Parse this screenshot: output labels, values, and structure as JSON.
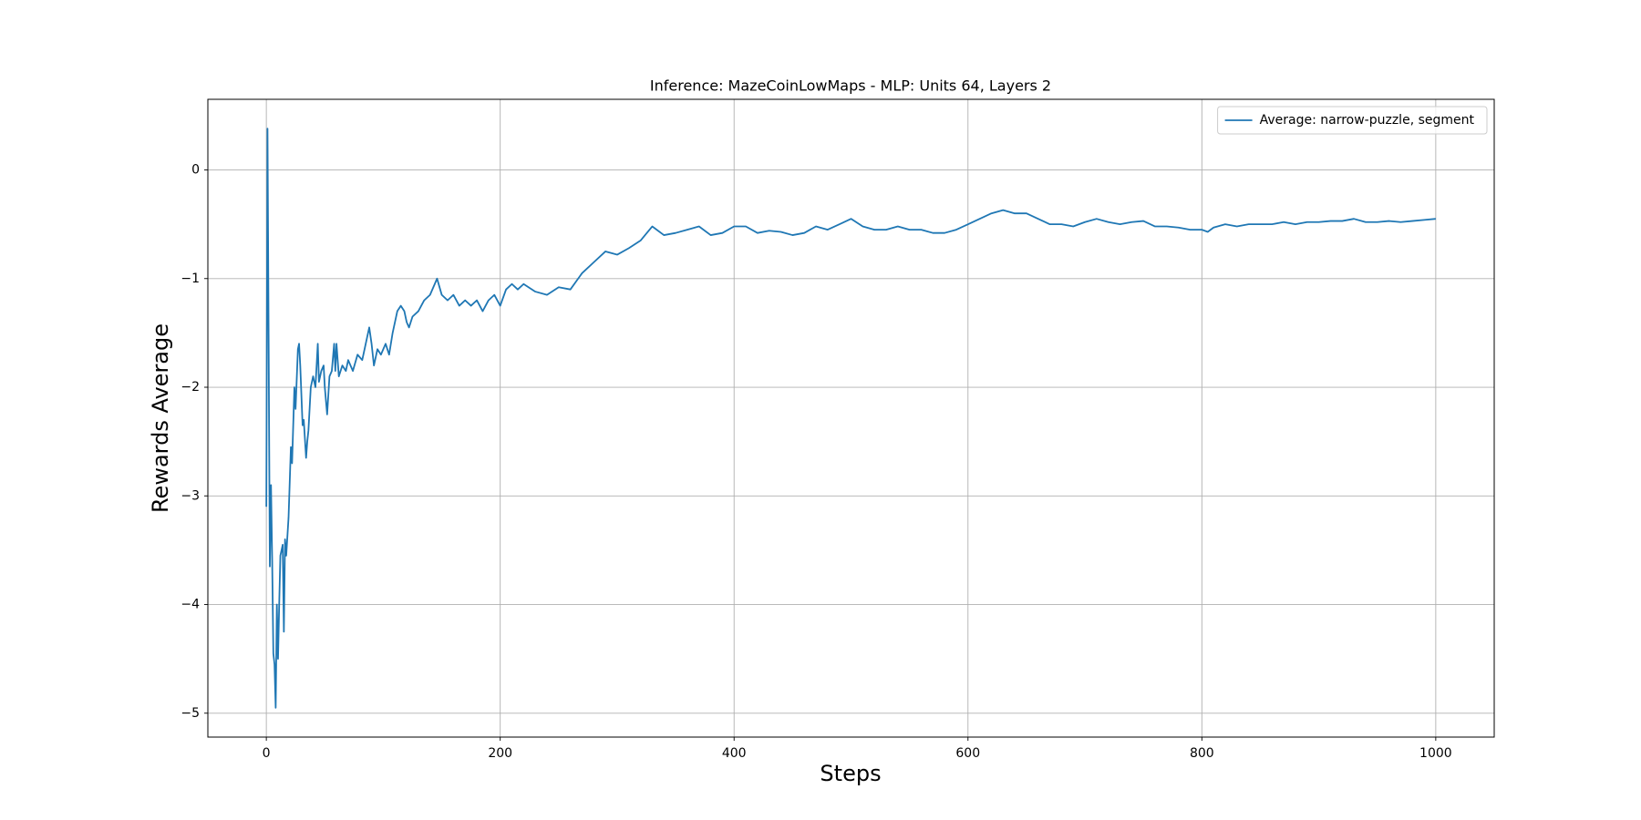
{
  "chart_data": {
    "type": "line",
    "title": "Inference: MazeCoinLowMaps - MLP: Units 64, Layers 2",
    "xlabel": "Steps",
    "ylabel": "Rewards Average",
    "x": [
      0,
      1,
      3,
      4,
      5,
      6,
      7,
      8,
      9,
      10,
      11,
      12,
      13,
      14,
      15,
      16,
      17,
      19,
      21,
      22,
      24,
      25,
      27,
      28,
      29,
      31,
      32,
      34,
      35,
      36,
      38,
      40,
      42,
      44,
      45,
      47,
      49,
      50,
      52,
      54,
      56,
      58,
      59,
      60,
      62,
      65,
      68,
      70,
      74,
      78,
      82,
      86,
      88,
      90,
      92,
      95,
      98,
      102,
      105,
      108,
      112,
      115,
      118,
      120,
      122,
      125,
      130,
      135,
      140,
      144,
      146,
      150,
      155,
      160,
      165,
      170,
      175,
      180,
      185,
      190,
      195,
      200,
      205,
      210,
      215,
      220,
      230,
      240,
      250,
      260,
      270,
      280,
      290,
      300,
      310,
      320,
      330,
      340,
      350,
      360,
      370,
      380,
      390,
      400,
      410,
      420,
      430,
      440,
      450,
      460,
      470,
      480,
      490,
      500,
      510,
      520,
      530,
      540,
      550,
      560,
      570,
      580,
      590,
      600,
      610,
      620,
      630,
      640,
      650,
      660,
      670,
      680,
      690,
      700,
      710,
      720,
      730,
      740,
      750,
      760,
      770,
      780,
      790,
      800,
      805,
      810,
      820,
      830,
      840,
      850,
      860,
      870,
      880,
      890,
      900,
      910,
      920,
      930,
      940,
      950,
      960,
      970,
      980,
      990,
      1000
    ],
    "series": [
      {
        "name": "Average: narrow-puzzle, segment",
        "color": "#1f77b4",
        "values": [
          -3.1,
          0.38,
          -3.65,
          -2.9,
          -3.6,
          -4.45,
          -4.55,
          -4.95,
          -4.0,
          -4.5,
          -4.0,
          -3.55,
          -3.5,
          -3.45,
          -4.25,
          -3.4,
          -3.55,
          -3.2,
          -2.55,
          -2.7,
          -2.0,
          -2.2,
          -1.65,
          -1.6,
          -1.8,
          -2.35,
          -2.3,
          -2.65,
          -2.5,
          -2.4,
          -2.0,
          -1.9,
          -2.0,
          -1.6,
          -1.95,
          -1.85,
          -1.8,
          -2.0,
          -2.25,
          -1.9,
          -1.85,
          -1.6,
          -1.85,
          -1.6,
          -1.9,
          -1.8,
          -1.85,
          -1.75,
          -1.85,
          -1.7,
          -1.75,
          -1.55,
          -1.45,
          -1.6,
          -1.8,
          -1.65,
          -1.7,
          -1.6,
          -1.7,
          -1.5,
          -1.3,
          -1.25,
          -1.3,
          -1.4,
          -1.45,
          -1.35,
          -1.3,
          -1.2,
          -1.15,
          -1.05,
          -1.0,
          -1.15,
          -1.2,
          -1.15,
          -1.25,
          -1.2,
          -1.25,
          -1.2,
          -1.3,
          -1.2,
          -1.15,
          -1.25,
          -1.1,
          -1.05,
          -1.1,
          -1.05,
          -1.12,
          -1.15,
          -1.08,
          -1.1,
          -0.95,
          -0.85,
          -0.75,
          -0.78,
          -0.72,
          -0.65,
          -0.52,
          -0.6,
          -0.58,
          -0.55,
          -0.52,
          -0.6,
          -0.58,
          -0.52,
          -0.52,
          -0.58,
          -0.56,
          -0.57,
          -0.6,
          -0.58,
          -0.52,
          -0.55,
          -0.5,
          -0.45,
          -0.52,
          -0.55,
          -0.55,
          -0.52,
          -0.55,
          -0.55,
          -0.58,
          -0.58,
          -0.55,
          -0.5,
          -0.45,
          -0.4,
          -0.37,
          -0.4,
          -0.4,
          -0.45,
          -0.5,
          -0.5,
          -0.52,
          -0.48,
          -0.45,
          -0.48,
          -0.5,
          -0.48,
          -0.47,
          -0.52,
          -0.52,
          -0.53,
          -0.55,
          -0.55,
          -0.57,
          -0.53,
          -0.5,
          -0.52,
          -0.5,
          -0.5,
          -0.5,
          -0.48,
          -0.5,
          -0.48,
          -0.48,
          -0.47,
          -0.47,
          -0.45,
          -0.48,
          -0.48,
          -0.47,
          -0.48,
          -0.47,
          -0.46,
          -0.45
        ]
      }
    ],
    "xlim": [
      -50,
      1050
    ],
    "ylim": [
      -5.22,
      0.65
    ],
    "xticks": [
      0,
      200,
      400,
      600,
      800,
      1000
    ],
    "yticks": [
      {
        "value": -5,
        "label": "−5"
      },
      {
        "value": -4,
        "label": "−4"
      },
      {
        "value": -3,
        "label": "−3"
      },
      {
        "value": -2,
        "label": "−2"
      },
      {
        "value": -1,
        "label": "−1"
      },
      0
    ],
    "grid": true,
    "legend": "upper right"
  }
}
